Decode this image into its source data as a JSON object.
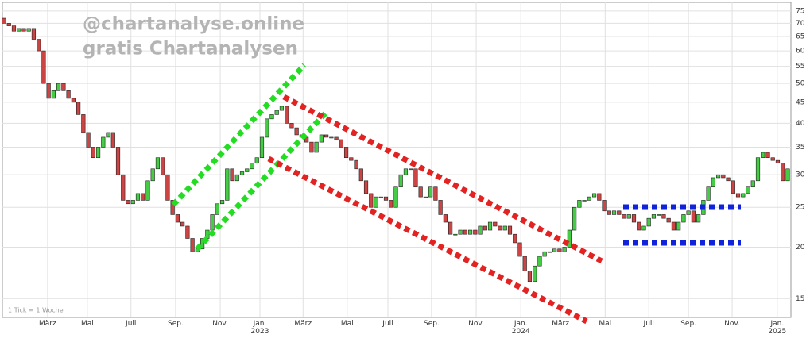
{
  "chart_data": {
    "type": "candlestick",
    "watermark": [
      "@chartanalyse.online",
      "gratis Chartanalysen"
    ],
    "note": "1 Tick = 1 Woche",
    "log_scale": true,
    "grid": true,
    "up_color": "#44cc44",
    "down_color": "#cc4444",
    "open": [
      72,
      70,
      69,
      67,
      68,
      67,
      68,
      64,
      60,
      50,
      46,
      48,
      50,
      48,
      46,
      45,
      42,
      38,
      35,
      33,
      35,
      37,
      38,
      35,
      30,
      26,
      25.5,
      26,
      27,
      26,
      29,
      31,
      33,
      30,
      26,
      24,
      23,
      22.5,
      21,
      19.5,
      19.8,
      21,
      22,
      24,
      25.5,
      26,
      31,
      29,
      30,
      30.5,
      31,
      32,
      33,
      37,
      41,
      42,
      43,
      44,
      40,
      39,
      37.5,
      37,
      36,
      34,
      36,
      37.5,
      37,
      37,
      36.5,
      35,
      33,
      32.5,
      31,
      29,
      27,
      25,
      26.5,
      26.5,
      26,
      25,
      28,
      30,
      31,
      31,
      28,
      26.5,
      26.5,
      28,
      26,
      24,
      23,
      21.5,
      21.5,
      22,
      21.5,
      22,
      21.5,
      22.5,
      22,
      23,
      22.5,
      22,
      22.5,
      21.5,
      20.5,
      19,
      17.5,
      16.5,
      18,
      19,
      19.5,
      19.5,
      19.8,
      19.5,
      20,
      22,
      25,
      26,
      26,
      26.5,
      27,
      26,
      24.5,
      24,
      24.5,
      24,
      23.5,
      24,
      23,
      22,
      22.5,
      23.5,
      24,
      24,
      23.5,
      23,
      22,
      23,
      24,
      24.5,
      23,
      24,
      26,
      28,
      29.5,
      30,
      29.5,
      29,
      27,
      26.5,
      27,
      28,
      29,
      33,
      34,
      33,
      32.5,
      32,
      29
    ],
    "close": [
      70,
      69,
      67,
      68,
      67,
      68,
      64,
      60,
      50,
      46,
      48,
      50,
      48,
      46,
      45,
      42,
      38,
      35,
      33,
      35,
      37,
      38,
      35,
      30,
      26,
      25.5,
      26,
      27,
      26,
      29,
      31,
      33,
      30,
      26,
      24,
      23,
      22.5,
      21,
      19.5,
      19.8,
      21,
      22,
      24,
      25.5,
      26,
      31,
      29,
      30,
      30.5,
      31,
      32,
      33,
      37,
      41,
      42,
      43,
      44,
      40,
      39,
      37.5,
      37,
      36,
      34,
      36,
      37.5,
      37,
      37,
      36.5,
      35,
      33,
      32.5,
      31,
      29,
      27,
      25,
      26.5,
      26.5,
      26,
      25,
      28,
      30,
      31,
      31,
      28,
      26.5,
      26.5,
      28,
      26,
      24,
      23,
      21.5,
      21.5,
      22,
      21.5,
      22,
      21.5,
      22.5,
      22,
      23,
      22.5,
      22,
      22.5,
      21.5,
      20.5,
      19,
      17.5,
      16.5,
      18,
      19,
      19.5,
      19.5,
      19.8,
      19.5,
      20,
      22,
      25,
      26,
      26,
      26.5,
      27,
      26,
      24.5,
      24,
      24.5,
      24,
      23.5,
      24,
      23,
      22,
      22.5,
      23.5,
      24,
      24,
      23.5,
      23,
      22,
      23,
      24,
      24.5,
      23,
      24,
      26,
      28,
      29.5,
      30,
      29.5,
      29,
      27,
      26.5,
      27,
      28,
      29,
      33,
      34,
      33,
      32.5,
      32,
      29,
      31
    ],
    "xlim": [
      -0.32,
      158.65
    ],
    "xticks": [
      {
        "value": 8.8,
        "label": "März"
      },
      {
        "value": 16.8,
        "label": "Mai"
      },
      {
        "value": 25.6,
        "label": "Juli"
      },
      {
        "value": 34.6,
        "label": "Sep."
      },
      {
        "value": 43.6,
        "label": "Nov."
      },
      {
        "value": 51.6,
        "label": "Jan.\n2023"
      },
      {
        "value": 60.3,
        "label": "März"
      },
      {
        "value": 69.2,
        "label": "Mai"
      },
      {
        "value": 77.4,
        "label": "Juli"
      },
      {
        "value": 86.2,
        "label": "Sep."
      },
      {
        "value": 95.2,
        "label": "Nov."
      },
      {
        "value": 104.2,
        "label": "Jan.\n2024"
      },
      {
        "value": 112.2,
        "label": "März"
      },
      {
        "value": 121.2,
        "label": "Mai"
      },
      {
        "value": 130,
        "label": "Juli"
      },
      {
        "value": 138,
        "label": "Sep."
      },
      {
        "value": 146.8,
        "label": "Nov."
      },
      {
        "value": 155.9,
        "label": "Jan.\n2025"
      }
    ],
    "ylim": [
      13.5,
      78
    ],
    "yticks": [
      15,
      20,
      25,
      30,
      35,
      40,
      45,
      50,
      55,
      60,
      65,
      70,
      75
    ]
  }
}
